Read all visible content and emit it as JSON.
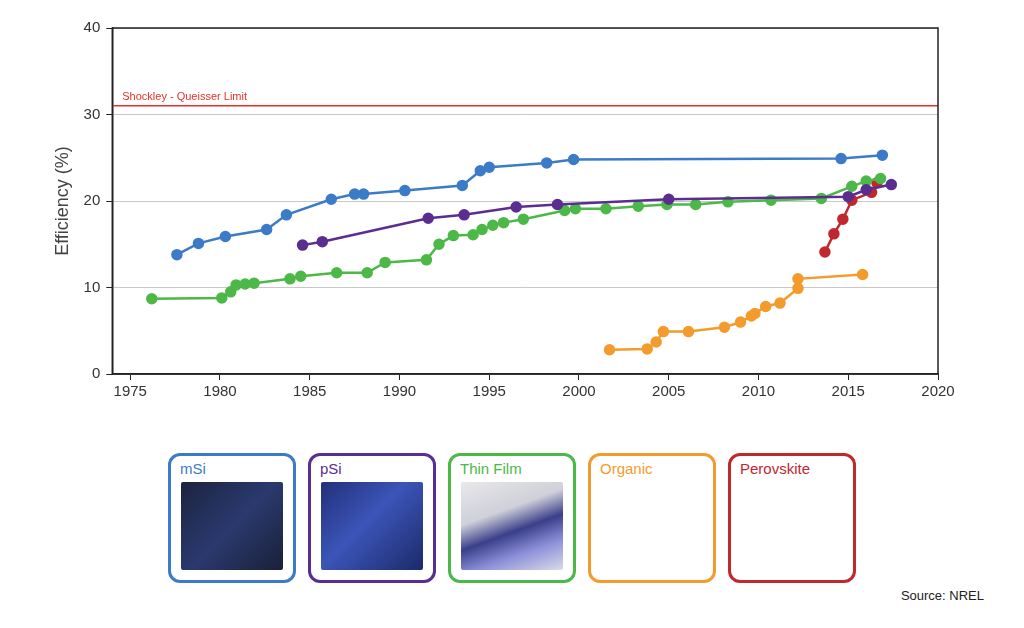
{
  "chart_data": {
    "type": "line",
    "y_label": "Efficiency (%)",
    "xlim": [
      1974,
      2020
    ],
    "xticks": [
      1975,
      1980,
      1985,
      1990,
      1995,
      2000,
      2005,
      2010,
      2015,
      2020
    ],
    "ylim": [
      0,
      40
    ],
    "yticks": [
      0,
      10,
      20,
      30,
      40
    ],
    "grid": true,
    "legend": "bottom",
    "marker": "circle",
    "annotations": [
      {
        "text": "Shockley - Queisser Limit",
        "y": 31,
        "color": "#e8312a"
      }
    ],
    "source": "Source: NREL",
    "series": [
      {
        "name": "mSi",
        "color": "#3b7bc8",
        "x": [
          1977.6,
          1978.8,
          1980.3,
          1982.6,
          1983.7,
          1986.2,
          1987.5,
          1988.0,
          1990.3,
          1993.5,
          1994.5,
          1995.0,
          1998.2,
          1999.7,
          2014.6,
          2016.9
        ],
        "values": [
          13.8,
          15.1,
          15.9,
          16.7,
          18.4,
          20.2,
          20.8,
          20.8,
          21.2,
          21.8,
          23.5,
          23.9,
          24.4,
          24.8,
          24.9,
          25.3
        ]
      },
      {
        "name": "pSi",
        "color": "#5c2d91",
        "x": [
          1984.6,
          1985.7,
          1991.6,
          1993.6,
          1996.5,
          1998.8,
          2005.0,
          2015.0,
          2016.0,
          2017.4
        ],
        "values": [
          14.9,
          15.3,
          18.0,
          18.4,
          19.3,
          19.6,
          20.2,
          20.5,
          21.3,
          21.9
        ]
      },
      {
        "name": "Thin Film",
        "color": "#4cb848",
        "x": [
          1976.2,
          1980.1,
          1980.6,
          1980.9,
          1981.4,
          1981.9,
          1983.9,
          1984.5,
          1986.5,
          1988.2,
          1989.2,
          1991.5,
          1992.2,
          1993.0,
          1994.1,
          1994.6,
          1995.2,
          1995.8,
          1996.9,
          1999.2,
          1999.8,
          2001.5,
          2003.3,
          2004.9,
          2006.5,
          2008.3,
          2010.7,
          2013.5,
          2015.2,
          2016.0,
          2016.8
        ],
        "values": [
          8.7,
          8.8,
          9.5,
          10.3,
          10.4,
          10.5,
          11.0,
          11.3,
          11.7,
          11.7,
          12.9,
          13.2,
          15.0,
          16.0,
          16.1,
          16.7,
          17.2,
          17.5,
          17.9,
          18.9,
          19.1,
          19.1,
          19.4,
          19.6,
          19.6,
          19.9,
          20.1,
          20.3,
          21.7,
          22.3,
          22.6
        ]
      },
      {
        "name": "Organic",
        "color": "#f39b2c",
        "x": [
          2001.7,
          2003.8,
          2004.3,
          2004.7,
          2006.1,
          2008.1,
          2009.0,
          2009.6,
          2009.8,
          2010.4,
          2011.2,
          2012.2,
          2012.2,
          2015.8
        ],
        "values": [
          2.8,
          2.9,
          3.7,
          4.9,
          4.9,
          5.4,
          6.0,
          6.7,
          7.0,
          7.8,
          8.2,
          9.9,
          11.0,
          11.5
        ]
      },
      {
        "name": "Perovskite",
        "color": "#c0282d",
        "x": [
          2013.7,
          2014.2,
          2014.7,
          2015.2,
          2016.3,
          2016.6
        ],
        "values": [
          14.1,
          16.2,
          17.9,
          20.1,
          21.0,
          22.1
        ]
      }
    ]
  }
}
